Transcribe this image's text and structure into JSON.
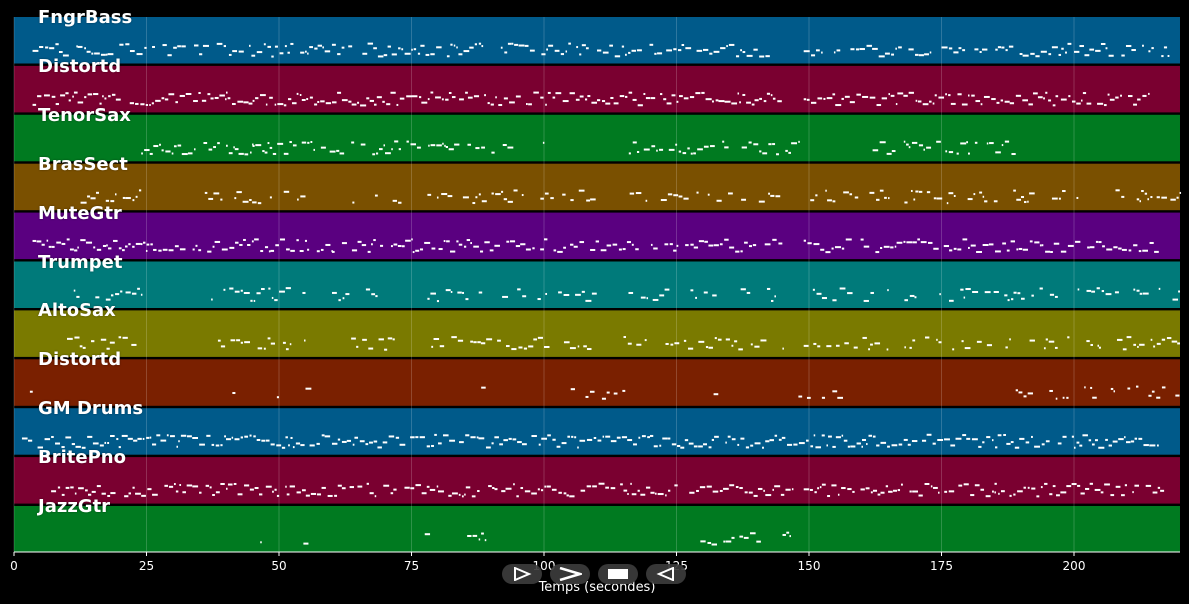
{
  "chart_data": {
    "type": "piano-roll",
    "xlabel": "Temps (secondes)",
    "xlim": [
      0,
      220
    ],
    "x_ticks": [
      0,
      25,
      50,
      75,
      100,
      125,
      150,
      175,
      200
    ],
    "grid": true,
    "tracks": [
      {
        "name": "FngrBass",
        "color": "#005a8a",
        "density": 0.85,
        "segments": [
          [
            3.5,
            12
          ],
          [
            12,
            40
          ],
          [
            40,
            75
          ],
          [
            75,
            110
          ],
          [
            110,
            130
          ],
          [
            130,
            145
          ],
          [
            149,
            175
          ],
          [
            175,
            200
          ],
          [
            200,
            218
          ]
        ]
      },
      {
        "name": "Distortd",
        "color": "#7a0030",
        "density": 0.95,
        "segments": [
          [
            3.5,
            12
          ],
          [
            12,
            40
          ],
          [
            40,
            75
          ],
          [
            75,
            110
          ],
          [
            110,
            125
          ],
          [
            125,
            145
          ],
          [
            149,
            180
          ],
          [
            180,
            214
          ]
        ]
      },
      {
        "name": "TenorSax",
        "color": "#007a20",
        "density": 0.8,
        "segments": [
          [
            24,
            45
          ],
          [
            45,
            70
          ],
          [
            70,
            100
          ],
          [
            116,
            134
          ],
          [
            134,
            148
          ],
          [
            162,
            180
          ],
          [
            180,
            189
          ]
        ]
      },
      {
        "name": "BrasSect",
        "color": "#7a5000",
        "density": 0.55,
        "segments": [
          [
            10,
            24
          ],
          [
            36,
            55
          ],
          [
            60,
            75
          ],
          [
            78,
            110
          ],
          [
            115,
            145
          ],
          [
            149,
            165
          ],
          [
            168,
            190
          ],
          [
            190,
            220
          ]
        ]
      },
      {
        "name": "MuteGtr",
        "color": "#5a0080",
        "density": 0.85,
        "segments": [
          [
            3.5,
            25
          ],
          [
            25,
            60
          ],
          [
            60,
            100
          ],
          [
            100,
            125
          ],
          [
            125,
            145
          ],
          [
            149,
            180
          ],
          [
            180,
            216
          ]
        ]
      },
      {
        "name": "Trumpet",
        "color": "#007a7a",
        "density": 0.5,
        "segments": [
          [
            10,
            24
          ],
          [
            36,
            55
          ],
          [
            60,
            75
          ],
          [
            78,
            110
          ],
          [
            115,
            145
          ],
          [
            149,
            165
          ],
          [
            168,
            190
          ],
          [
            190,
            220
          ]
        ]
      },
      {
        "name": "AltoSax",
        "color": "#7a7a00",
        "density": 0.55,
        "segments": [
          [
            10,
            24
          ],
          [
            36,
            55
          ],
          [
            60,
            75
          ],
          [
            78,
            110
          ],
          [
            115,
            145
          ],
          [
            149,
            165
          ],
          [
            168,
            190
          ],
          [
            190,
            220
          ]
        ]
      },
      {
        "name": "Distortd",
        "color": "#7a2000",
        "density": 0.5,
        "segments": [
          [
            3,
            4
          ],
          [
            40,
            42
          ],
          [
            49,
            50
          ],
          [
            55,
            57
          ],
          [
            73,
            74
          ],
          [
            81,
            82
          ],
          [
            87,
            89
          ],
          [
            102,
            116
          ],
          [
            132,
            133
          ],
          [
            141,
            142
          ],
          [
            148,
            158
          ],
          [
            189,
            220
          ]
        ]
      },
      {
        "name": "GM Drums",
        "color": "#005a8a",
        "density": 0.95,
        "segments": [
          [
            1.5,
            40
          ],
          [
            40,
            80
          ],
          [
            80,
            120
          ],
          [
            120,
            160
          ],
          [
            160,
            200
          ],
          [
            200,
            216
          ]
        ]
      },
      {
        "name": "BritePno",
        "color": "#7a0030",
        "density": 0.9,
        "segments": [
          [
            7,
            40
          ],
          [
            40,
            80
          ],
          [
            80,
            115
          ],
          [
            115,
            147
          ],
          [
            149,
            185
          ],
          [
            185,
            210
          ],
          [
            211,
            217
          ]
        ]
      },
      {
        "name": "JazzGtr",
        "color": "#007a20",
        "density": 0.7,
        "segments": [
          [
            45.5,
            46.5
          ],
          [
            53.5,
            56
          ],
          [
            77.5,
            78.5
          ],
          [
            85.5,
            89
          ],
          [
            129.5,
            141
          ],
          [
            145,
            146.5
          ]
        ]
      }
    ]
  },
  "transport": {
    "buttons": [
      {
        "name": "play-outline-button",
        "icon": "play-outline-icon"
      },
      {
        "name": "forward-button",
        "icon": "chevron-right-icon"
      },
      {
        "name": "stop-button",
        "icon": "stop-icon"
      },
      {
        "name": "reverse-button",
        "icon": "play-reverse-icon"
      }
    ]
  }
}
